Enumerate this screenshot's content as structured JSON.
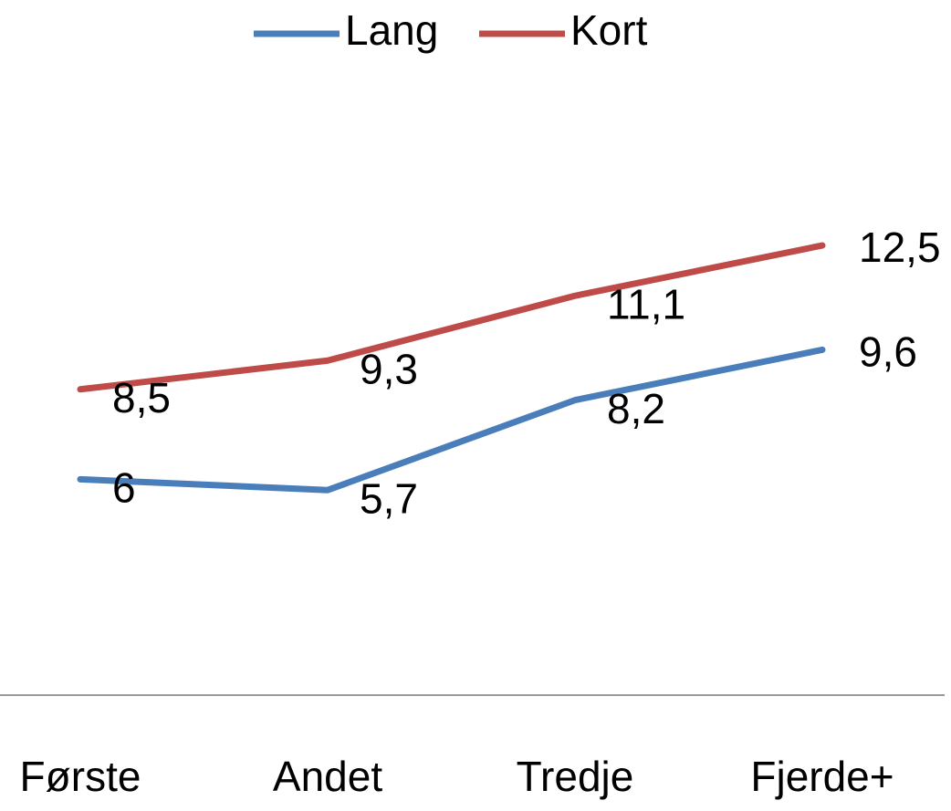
{
  "chart_data": {
    "type": "line",
    "categories": [
      "Første",
      "Andet",
      "Tredje",
      "Fjerde+"
    ],
    "series": [
      {
        "name": "Lang",
        "color": "#4a7ebb",
        "values": [
          6,
          5.7,
          8.2,
          9.6
        ],
        "value_labels": [
          "6",
          "5,7",
          "8,2",
          "9,6"
        ]
      },
      {
        "name": "Kort",
        "color": "#be4b48",
        "values": [
          8.5,
          9.3,
          11.1,
          12.5
        ],
        "value_labels": [
          "8,5",
          "9,3",
          "11,1",
          "12,5"
        ]
      }
    ],
    "ylim": [
      0,
      16
    ]
  }
}
